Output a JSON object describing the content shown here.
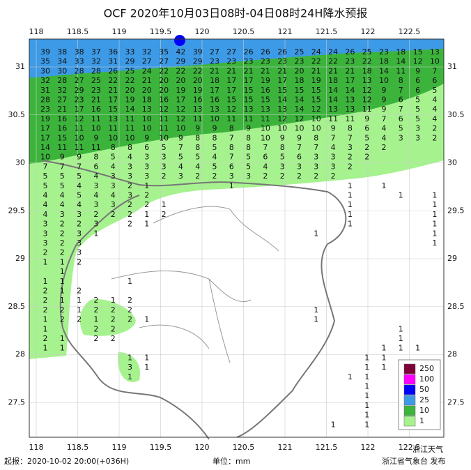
{
  "header": {
    "title": "OCF 2020年10月03日08时-04日08时24H降水预报"
  },
  "map": {
    "lon_ticks": [
      118,
      118.5,
      119,
      119.5,
      120,
      120.5,
      121,
      121.5,
      122,
      122.5
    ],
    "lat_ticks": [
      31,
      30.5,
      30,
      29.5,
      29,
      28.5,
      28,
      27.5
    ],
    "rows": [
      [
        39,
        38,
        38,
        37,
        36,
        33,
        32,
        35,
        42,
        39,
        27,
        27,
        26,
        26,
        26,
        25,
        24,
        24,
        26,
        25,
        23,
        18,
        15,
        13
      ],
      [
        35,
        34,
        33,
        32,
        31,
        29,
        27,
        27,
        29,
        29,
        23,
        23,
        23,
        23,
        23,
        23,
        22,
        22,
        23,
        22,
        18,
        14,
        12,
        10
      ],
      [
        30,
        30,
        28,
        28,
        26,
        25,
        24,
        22,
        22,
        22,
        21,
        21,
        21,
        21,
        21,
        20,
        21,
        21,
        21,
        18,
        14,
        11,
        9,
        7
      ],
      [
        32,
        28,
        27,
        25,
        22,
        22,
        21,
        20,
        20,
        20,
        18,
        17,
        17,
        19,
        17,
        18,
        19,
        18,
        17,
        13,
        10,
        8,
        6,
        6
      ],
      [
        31,
        32,
        29,
        23,
        21,
        20,
        20,
        20,
        19,
        19,
        17,
        17,
        15,
        16,
        15,
        15,
        15,
        14,
        14,
        12,
        9,
        7,
        6,
        5
      ],
      [
        28,
        27,
        23,
        21,
        17,
        19,
        18,
        16,
        17,
        16,
        16,
        15,
        15,
        15,
        14,
        14,
        15,
        14,
        13,
        12,
        9,
        6,
        5,
        4
      ],
      [
        23,
        21,
        17,
        16,
        15,
        14,
        13,
        12,
        12,
        13,
        13,
        12,
        13,
        13,
        13,
        14,
        12,
        13,
        13,
        11,
        9,
        7,
        5,
        4
      ],
      [
        19,
        16,
        12,
        11,
        13,
        11,
        10,
        11,
        12,
        11,
        10,
        11,
        11,
        11,
        12,
        12,
        10,
        11,
        11,
        9,
        7,
        6,
        5,
        4
      ],
      [
        17,
        16,
        11,
        10,
        11,
        11,
        10,
        11,
        10,
        9,
        9,
        8,
        9,
        10,
        10,
        10,
        10,
        9,
        8,
        6,
        4,
        5,
        3,
        2
      ],
      [
        17,
        15,
        10,
        9,
        10,
        10,
        9,
        10,
        9,
        8,
        8,
        7,
        8,
        10,
        9,
        9,
        8,
        7,
        7,
        5,
        4,
        3,
        3,
        2
      ],
      [
        14,
        11,
        11,
        11,
        8,
        8,
        6,
        5,
        7,
        8,
        5,
        8,
        8,
        7,
        8,
        7,
        7,
        4,
        3,
        2,
        2
      ],
      [
        10,
        9,
        9,
        8,
        5,
        4,
        3,
        3,
        5,
        5,
        4,
        7,
        5,
        6,
        5,
        6,
        3,
        3,
        2,
        2
      ],
      [
        7,
        7,
        7,
        6,
        4,
        3,
        3,
        3,
        4,
        4,
        5,
        6,
        5,
        4,
        3,
        3,
        3,
        3,
        2
      ],
      [
        5,
        5,
        5,
        4,
        3,
        3,
        3,
        2,
        3,
        2,
        2,
        3,
        3,
        2,
        2,
        2,
        2,
        2
      ],
      [
        5,
        5,
        4,
        3,
        3,
        2,
        1,
        null,
        null,
        null,
        null,
        1,
        null,
        null,
        null,
        null,
        null,
        null,
        1,
        null,
        1
      ],
      [
        4,
        4,
        5,
        4,
        4,
        3,
        2,
        null,
        null,
        null,
        null,
        null,
        null,
        null,
        null,
        null,
        null,
        null,
        1,
        null,
        null,
        1,
        null,
        1
      ],
      [
        4,
        4,
        4,
        3,
        3,
        2,
        2,
        1,
        null,
        null,
        null,
        null,
        null,
        null,
        null,
        null,
        null,
        null,
        1,
        null,
        null,
        null,
        null,
        1
      ],
      [
        4,
        3,
        3,
        2,
        2,
        2,
        1,
        2,
        null,
        null,
        null,
        null,
        null,
        null,
        null,
        null,
        null,
        null,
        1,
        null,
        null,
        null,
        null,
        1
      ],
      [
        3,
        2,
        2,
        3,
        null,
        2,
        1,
        null,
        null,
        null,
        null,
        null,
        null,
        null,
        null,
        null,
        null,
        null,
        1,
        null,
        null,
        null,
        null,
        1
      ],
      [
        3,
        2,
        3,
        1,
        null,
        null,
        null,
        null,
        null,
        null,
        null,
        null,
        null,
        null,
        null,
        null,
        1,
        null,
        null,
        null,
        null,
        null,
        null,
        1
      ],
      [
        3,
        2,
        3,
        null,
        null,
        null,
        null,
        null,
        null,
        null,
        null,
        null,
        null,
        null,
        null,
        null,
        null,
        null,
        null,
        null,
        null,
        null,
        null,
        1
      ],
      [
        2,
        2,
        3
      ],
      [
        1,
        1,
        2
      ],
      [
        null,
        1
      ],
      [
        1,
        1,
        null,
        null,
        null,
        1
      ],
      [
        2,
        1,
        2
      ],
      [
        2,
        1,
        1,
        2,
        1,
        2
      ],
      [
        2,
        2,
        1,
        2,
        2,
        2,
        null,
        null,
        null,
        null,
        null,
        null,
        null,
        null,
        null,
        null,
        1
      ],
      [
        1,
        2,
        2,
        1,
        2,
        2,
        1,
        null,
        null,
        null,
        null,
        null,
        null,
        null,
        null,
        null,
        1
      ],
      [
        1,
        null,
        null,
        2,
        2,
        null,
        null,
        null,
        null,
        null,
        null,
        null,
        null,
        null,
        null,
        null,
        null,
        null,
        null,
        null,
        null,
        1
      ],
      [
        2,
        1,
        null,
        2,
        2,
        null,
        null,
        null,
        null,
        null,
        null,
        null,
        null,
        null,
        null,
        null,
        null,
        null,
        null,
        null,
        null,
        1
      ],
      [
        1,
        1,
        null,
        null,
        null,
        null,
        null,
        null,
        null,
        null,
        null,
        null,
        null,
        null,
        null,
        null,
        null,
        null,
        null,
        null,
        1,
        1,
        1
      ],
      [
        null,
        null,
        null,
        null,
        null,
        1,
        1,
        null,
        null,
        null,
        null,
        null,
        null,
        null,
        null,
        null,
        null,
        null,
        null,
        1,
        1
      ],
      [
        null,
        null,
        null,
        null,
        null,
        3,
        1,
        null,
        null,
        null,
        null,
        null,
        null,
        null,
        null,
        null,
        null,
        null,
        null,
        1,
        1
      ],
      [
        null,
        null,
        null,
        null,
        null,
        1,
        null,
        null,
        null,
        null,
        null,
        null,
        null,
        null,
        null,
        null,
        null,
        null,
        1,
        1,
        null,
        1
      ],
      [
        null,
        null,
        null,
        null,
        null,
        null,
        null,
        null,
        null,
        null,
        null,
        null,
        null,
        null,
        null,
        null,
        null,
        null,
        null,
        1
      ],
      [
        null,
        null,
        null,
        null,
        null,
        null,
        null,
        null,
        null,
        null,
        null,
        null,
        null,
        null,
        null,
        null,
        null,
        null,
        null,
        1
      ],
      [
        null,
        null,
        null,
        null,
        null,
        null,
        null,
        null,
        null,
        null,
        null,
        null,
        null,
        null,
        null,
        null,
        null,
        null,
        null,
        1
      ],
      [
        null,
        null,
        null,
        null,
        null,
        null,
        null,
        null,
        null,
        null,
        null,
        null,
        null,
        null,
        null,
        null,
        null,
        null,
        null,
        1
      ],
      [
        null,
        null,
        null,
        null,
        null,
        null,
        null,
        null,
        null,
        null,
        null,
        null,
        null,
        null,
        null,
        null,
        null,
        1,
        null,
        1
      ]
    ]
  },
  "legend": {
    "items": [
      {
        "label": 250,
        "color": "#7f0037"
      },
      {
        "label": 100,
        "color": "#ff00ff"
      },
      {
        "label": 50,
        "color": "#0000fe"
      },
      {
        "label": 25,
        "color": "#3d9ae6"
      },
      {
        "label": 10,
        "color": "#3cb43c"
      },
      {
        "label": 1,
        "color": "#a6f28f"
      }
    ]
  },
  "footer": {
    "issued": "起报：2020-10-02 20:00(+036H)",
    "unit": "单位：mm",
    "publisher": "浙江省气象台 发布",
    "watermark": "浙江天气"
  }
}
